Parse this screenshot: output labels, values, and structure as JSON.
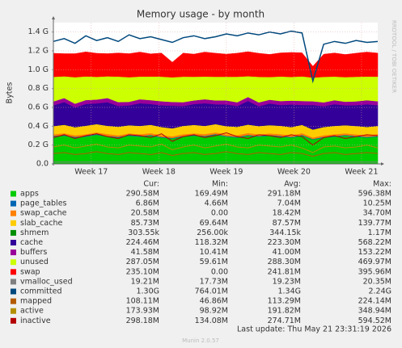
{
  "chart_data": {
    "type": "area",
    "title": "Memory usage - by month",
    "y_label": "Bytes",
    "side_text": "RRDTOOL / TOBI OETIKER",
    "footer": "Last update: Thu May 21 23:31:19 2026",
    "version": "Munin 2.0.57",
    "grid": true,
    "xlim": [
      16.44,
      21.24
    ],
    "xticks": [
      {
        "value": 17,
        "label": "Week 17"
      },
      {
        "value": 18,
        "label": "Week 18"
      },
      {
        "value": 19,
        "label": "Week 19"
      },
      {
        "value": 20,
        "label": "Week 20"
      },
      {
        "value": 21,
        "label": "Week 21"
      }
    ],
    "ylim": [
      0,
      1.5
    ],
    "yticks": [
      {
        "value": 0,
        "label": "0.0"
      },
      {
        "value": 0.2,
        "label": "0.2 G"
      },
      {
        "value": 0.4,
        "label": "0.4 G"
      },
      {
        "value": 0.6,
        "label": "0.6 G"
      },
      {
        "value": 0.8,
        "label": "0.8 G"
      },
      {
        "value": 1.0,
        "label": "1.0 G"
      },
      {
        "value": 1.2,
        "label": "1.2 G"
      },
      {
        "value": 1.4,
        "label": "1.4 G"
      }
    ],
    "x": [
      16.44,
      16.6,
      16.76,
      16.92,
      17.08,
      17.24,
      17.4,
      17.56,
      17.72,
      17.88,
      18.04,
      18.2,
      18.36,
      18.52,
      18.68,
      18.84,
      19.0,
      19.16,
      19.32,
      19.48,
      19.64,
      19.8,
      19.96,
      20.12,
      20.28,
      20.44,
      20.6,
      20.76,
      20.92,
      21.08,
      21.24
    ],
    "summary_columns": [
      "Cur:",
      "Min:",
      "Avg:",
      "Max:"
    ],
    "series": [
      {
        "name": "apps",
        "color": "#00cc00",
        "stacked": true,
        "summary": [
          "290.58M",
          "169.49M",
          "291.18M",
          "596.38M"
        ],
        "values": [
          0.29,
          0.3,
          0.28,
          0.29,
          0.31,
          0.29,
          0.28,
          0.3,
          0.29,
          0.3,
          0.28,
          0.27,
          0.29,
          0.3,
          0.29,
          0.31,
          0.29,
          0.28,
          0.3,
          0.29,
          0.3,
          0.29,
          0.28,
          0.3,
          0.26,
          0.28,
          0.29,
          0.3,
          0.29,
          0.28,
          0.29
        ]
      },
      {
        "name": "page_tables",
        "color": "#0066b3",
        "stacked": true,
        "summary": [
          "6.86M",
          "4.66M",
          "7.04M",
          "10.25M"
        ],
        "values": [
          0.007,
          0.007,
          0.007,
          0.007,
          0.007,
          0.007,
          0.007,
          0.007,
          0.007,
          0.007,
          0.007,
          0.006,
          0.007,
          0.007,
          0.007,
          0.007,
          0.007,
          0.007,
          0.007,
          0.007,
          0.007,
          0.007,
          0.007,
          0.007,
          0.005,
          0.007,
          0.007,
          0.007,
          0.007,
          0.007,
          0.007
        ]
      },
      {
        "name": "swap_cache",
        "color": "#ff8000",
        "stacked": true,
        "summary": [
          "20.58M",
          "0.00",
          "18.42M",
          "34.70M"
        ],
        "values": [
          0.018,
          0.02,
          0.017,
          0.019,
          0.018,
          0.021,
          0.017,
          0.018,
          0.019,
          0.02,
          0.018,
          0.017,
          0.019,
          0.018,
          0.02,
          0.017,
          0.018,
          0.019,
          0.021,
          0.018,
          0.017,
          0.019,
          0.018,
          0.02,
          0.016,
          0.018,
          0.019,
          0.018,
          0.017,
          0.019,
          0.02
        ]
      },
      {
        "name": "slab_cache",
        "color": "#ffcc00",
        "stacked": true,
        "summary": [
          "85.73M",
          "69.64M",
          "87.57M",
          "139.77M"
        ],
        "values": [
          0.087,
          0.089,
          0.086,
          0.09,
          0.088,
          0.087,
          0.091,
          0.086,
          0.088,
          0.089,
          0.087,
          0.085,
          0.088,
          0.09,
          0.087,
          0.089,
          0.086,
          0.088,
          0.09,
          0.087,
          0.088,
          0.089,
          0.086,
          0.088,
          0.084,
          0.087,
          0.088,
          0.086,
          0.089,
          0.087,
          0.086
        ]
      },
      {
        "name": "shmem",
        "color": "#008f00",
        "stacked": true,
        "summary": [
          "303.55k",
          "256.00k",
          "344.15k",
          "1.17M"
        ],
        "values": [
          0.0003,
          0.0003,
          0.0003,
          0.0003,
          0.0003,
          0.0003,
          0.0003,
          0.0003,
          0.0003,
          0.0003,
          0.0003,
          0.0003,
          0.0003,
          0.0003,
          0.0003,
          0.0003,
          0.0003,
          0.0003,
          0.0003,
          0.0003,
          0.0003,
          0.0003,
          0.0003,
          0.0003,
          0.0003,
          0.0003,
          0.0003,
          0.0003,
          0.0003,
          0.0003,
          0.0003
        ]
      },
      {
        "name": "cache",
        "color": "#330099",
        "stacked": true,
        "summary": [
          "224.46M",
          "118.32M",
          "223.30M",
          "568.22M"
        ],
        "values": [
          0.22,
          0.24,
          0.21,
          0.23,
          0.22,
          0.25,
          0.22,
          0.21,
          0.24,
          0.22,
          0.23,
          0.24,
          0.21,
          0.22,
          0.24,
          0.21,
          0.23,
          0.22,
          0.25,
          0.21,
          0.23,
          0.22,
          0.24,
          0.21,
          0.26,
          0.22,
          0.23,
          0.21,
          0.22,
          0.24,
          0.22
        ]
      },
      {
        "name": "buffers",
        "color": "#990099",
        "stacked": true,
        "summary": [
          "41.58M",
          "10.41M",
          "41.00M",
          "153.22M"
        ],
        "values": [
          0.041,
          0.043,
          0.039,
          0.042,
          0.04,
          0.044,
          0.041,
          0.038,
          0.042,
          0.041,
          0.043,
          0.04,
          0.041,
          0.039,
          0.042,
          0.041,
          0.043,
          0.04,
          0.042,
          0.041,
          0.039,
          0.042,
          0.041,
          0.043,
          0.04,
          0.041,
          0.042,
          0.039,
          0.041,
          0.043,
          0.042
        ]
      },
      {
        "name": "unused",
        "color": "#ccff00",
        "stacked": true,
        "summary": [
          "287.05M",
          "59.61M",
          "288.30M",
          "469.97M"
        ],
        "values": [
          0.261,
          0.231,
          0.281,
          0.251,
          0.241,
          0.231,
          0.271,
          0.261,
          0.241,
          0.251,
          0.261,
          0.261,
          0.271,
          0.251,
          0.241,
          0.251,
          0.251,
          0.271,
          0.221,
          0.271,
          0.241,
          0.261,
          0.251,
          0.261,
          0.251,
          0.271,
          0.251,
          0.261,
          0.261,
          0.251,
          0.261
        ]
      },
      {
        "name": "swap",
        "color": "#ff0000",
        "stacked": true,
        "summary": [
          "235.10M",
          "0.00",
          "241.81M",
          "395.96M"
        ],
        "values": [
          0.25,
          0.24,
          0.25,
          0.26,
          0.25,
          0.24,
          0.25,
          0.25,
          0.26,
          0.24,
          0.25,
          0.16,
          0.25,
          0.24,
          0.26,
          0.25,
          0.24,
          0.25,
          0.26,
          0.25,
          0.24,
          0.25,
          0.26,
          0.25,
          0.12,
          0.24,
          0.25,
          0.24,
          0.25,
          0.26,
          0.25
        ]
      },
      {
        "name": "vmalloc_used",
        "color": "#808080",
        "stacked": false,
        "summary": [
          "19.21M",
          "17.73M",
          "19.23M",
          "20.35M"
        ],
        "values": [
          0.019,
          0.019,
          0.019,
          0.019,
          0.019,
          0.019,
          0.019,
          0.019,
          0.019,
          0.019,
          0.019,
          0.019,
          0.019,
          0.019,
          0.019,
          0.019,
          0.019,
          0.019,
          0.019,
          0.019,
          0.019,
          0.019,
          0.019,
          0.019,
          0.019,
          0.019,
          0.019,
          0.019,
          0.019,
          0.019,
          0.019
        ]
      },
      {
        "name": "committed",
        "color": "#00487d",
        "stacked": false,
        "summary": [
          "1.30G",
          "764.01M",
          "1.34G",
          "2.24G"
        ],
        "values": [
          1.3,
          1.33,
          1.28,
          1.36,
          1.31,
          1.34,
          1.3,
          1.37,
          1.33,
          1.35,
          1.32,
          1.29,
          1.34,
          1.36,
          1.33,
          1.35,
          1.38,
          1.36,
          1.39,
          1.37,
          1.4,
          1.38,
          1.41,
          1.39,
          0.88,
          1.27,
          1.3,
          1.28,
          1.31,
          1.29,
          1.3
        ]
      },
      {
        "name": "mapped",
        "color": "#b35a00",
        "stacked": false,
        "summary": [
          "108.11M",
          "46.86M",
          "113.29M",
          "224.14M"
        ],
        "values": [
          0.11,
          0.12,
          0.1,
          0.11,
          0.13,
          0.11,
          0.1,
          0.12,
          0.11,
          0.1,
          0.12,
          0.09,
          0.11,
          0.12,
          0.1,
          0.11,
          0.13,
          0.11,
          0.1,
          0.12,
          0.11,
          0.1,
          0.12,
          0.11,
          0.08,
          0.11,
          0.12,
          0.1,
          0.11,
          0.12,
          0.11
        ]
      },
      {
        "name": "active",
        "color": "#b38f00",
        "stacked": false,
        "summary": [
          "173.93M",
          "98.92M",
          "191.82M",
          "348.94M"
        ],
        "values": [
          0.18,
          0.2,
          0.17,
          0.19,
          0.21,
          0.18,
          0.17,
          0.2,
          0.19,
          0.18,
          0.21,
          0.15,
          0.18,
          0.2,
          0.17,
          0.19,
          0.21,
          0.18,
          0.17,
          0.2,
          0.19,
          0.18,
          0.2,
          0.17,
          0.12,
          0.18,
          0.19,
          0.17,
          0.18,
          0.2,
          0.17
        ]
      },
      {
        "name": "inactive",
        "color": "#b30000",
        "stacked": false,
        "summary": [
          "298.18M",
          "134.08M",
          "274.71M",
          "594.52M"
        ],
        "values": [
          0.28,
          0.31,
          0.27,
          0.3,
          0.32,
          0.29,
          0.27,
          0.31,
          0.3,
          0.28,
          0.32,
          0.24,
          0.29,
          0.31,
          0.28,
          0.3,
          0.33,
          0.29,
          0.27,
          0.31,
          0.3,
          0.28,
          0.31,
          0.29,
          0.2,
          0.28,
          0.3,
          0.27,
          0.29,
          0.31,
          0.3
        ]
      }
    ]
  }
}
